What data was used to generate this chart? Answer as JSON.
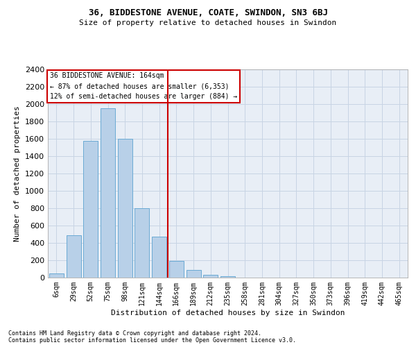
{
  "title": "36, BIDDESTONE AVENUE, COATE, SWINDON, SN3 6BJ",
  "subtitle": "Size of property relative to detached houses in Swindon",
  "xlabel": "Distribution of detached houses by size in Swindon",
  "ylabel": "Number of detached properties",
  "footnote1": "Contains HM Land Registry data © Crown copyright and database right 2024.",
  "footnote2": "Contains public sector information licensed under the Open Government Licence v3.0.",
  "bar_labels": [
    "6sqm",
    "29sqm",
    "52sqm",
    "75sqm",
    "98sqm",
    "121sqm",
    "144sqm",
    "166sqm",
    "189sqm",
    "212sqm",
    "235sqm",
    "258sqm",
    "281sqm",
    "304sqm",
    "327sqm",
    "350sqm",
    "373sqm",
    "396sqm",
    "419sqm",
    "442sqm",
    "465sqm"
  ],
  "bar_values": [
    50,
    490,
    1580,
    1950,
    1600,
    800,
    475,
    195,
    90,
    30,
    20,
    0,
    0,
    0,
    0,
    0,
    0,
    0,
    0,
    0,
    0
  ],
  "bar_color": "#b8d0e8",
  "bar_edge_color": "#6aaad4",
  "grid_color": "#c8d4e4",
  "bg_color": "#e8eef6",
  "vline_color": "#cc0000",
  "vline_pos": 6.5,
  "annotation_text": "36 BIDDESTONE AVENUE: 164sqm\n← 87% of detached houses are smaller (6,353)\n12% of semi-detached houses are larger (884) →",
  "annotation_box_color": "#ffffff",
  "annotation_box_edge": "#cc0000",
  "ylim": [
    0,
    2400
  ],
  "yticks": [
    0,
    200,
    400,
    600,
    800,
    1000,
    1200,
    1400,
    1600,
    1800,
    2000,
    2200,
    2400
  ],
  "title_fontsize": 9,
  "subtitle_fontsize": 8,
  "ylabel_fontsize": 8,
  "xlabel_fontsize": 8,
  "ytick_fontsize": 8,
  "xtick_fontsize": 7,
  "annot_fontsize": 7,
  "footnote_fontsize": 6
}
